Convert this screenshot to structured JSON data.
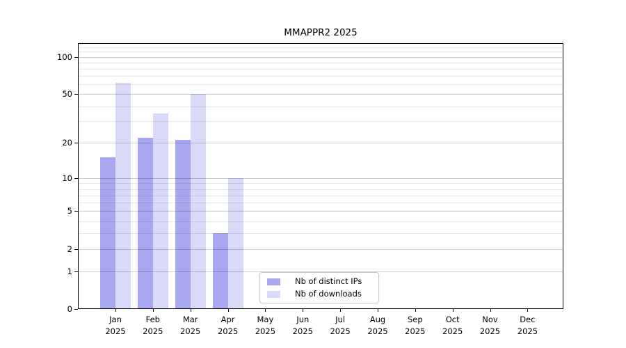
{
  "chart_data": {
    "type": "bar",
    "title": "MMAPPR2 2025",
    "year": "2025",
    "categories": [
      "Jan",
      "Feb",
      "Mar",
      "Apr",
      "May",
      "Jun",
      "Jul",
      "Aug",
      "Sep",
      "Oct",
      "Nov",
      "Dec"
    ],
    "series": [
      {
        "name": "Nb of distinct IPs",
        "color": "#a8a8f0",
        "values": [
          15,
          22,
          21,
          3,
          0,
          0,
          0,
          0,
          0,
          0,
          0,
          0
        ]
      },
      {
        "name": "Nb of downloads",
        "color": "#d9d9f8",
        "values": [
          62,
          35,
          50,
          10,
          0,
          0,
          0,
          0,
          0,
          0,
          0,
          0
        ]
      }
    ],
    "y_scale": "log10(1+x)",
    "ylim": [
      0,
      129
    ],
    "y_major_ticks": [
      0,
      1,
      2,
      5,
      10,
      20,
      50,
      100
    ],
    "y_minor_gridlines": [
      3,
      4,
      6,
      7,
      8,
      9,
      30,
      40,
      60,
      70,
      80,
      90,
      110,
      120
    ],
    "grid": "on",
    "legend_position": "lower-center",
    "xlabel": "",
    "ylabel": ""
  }
}
